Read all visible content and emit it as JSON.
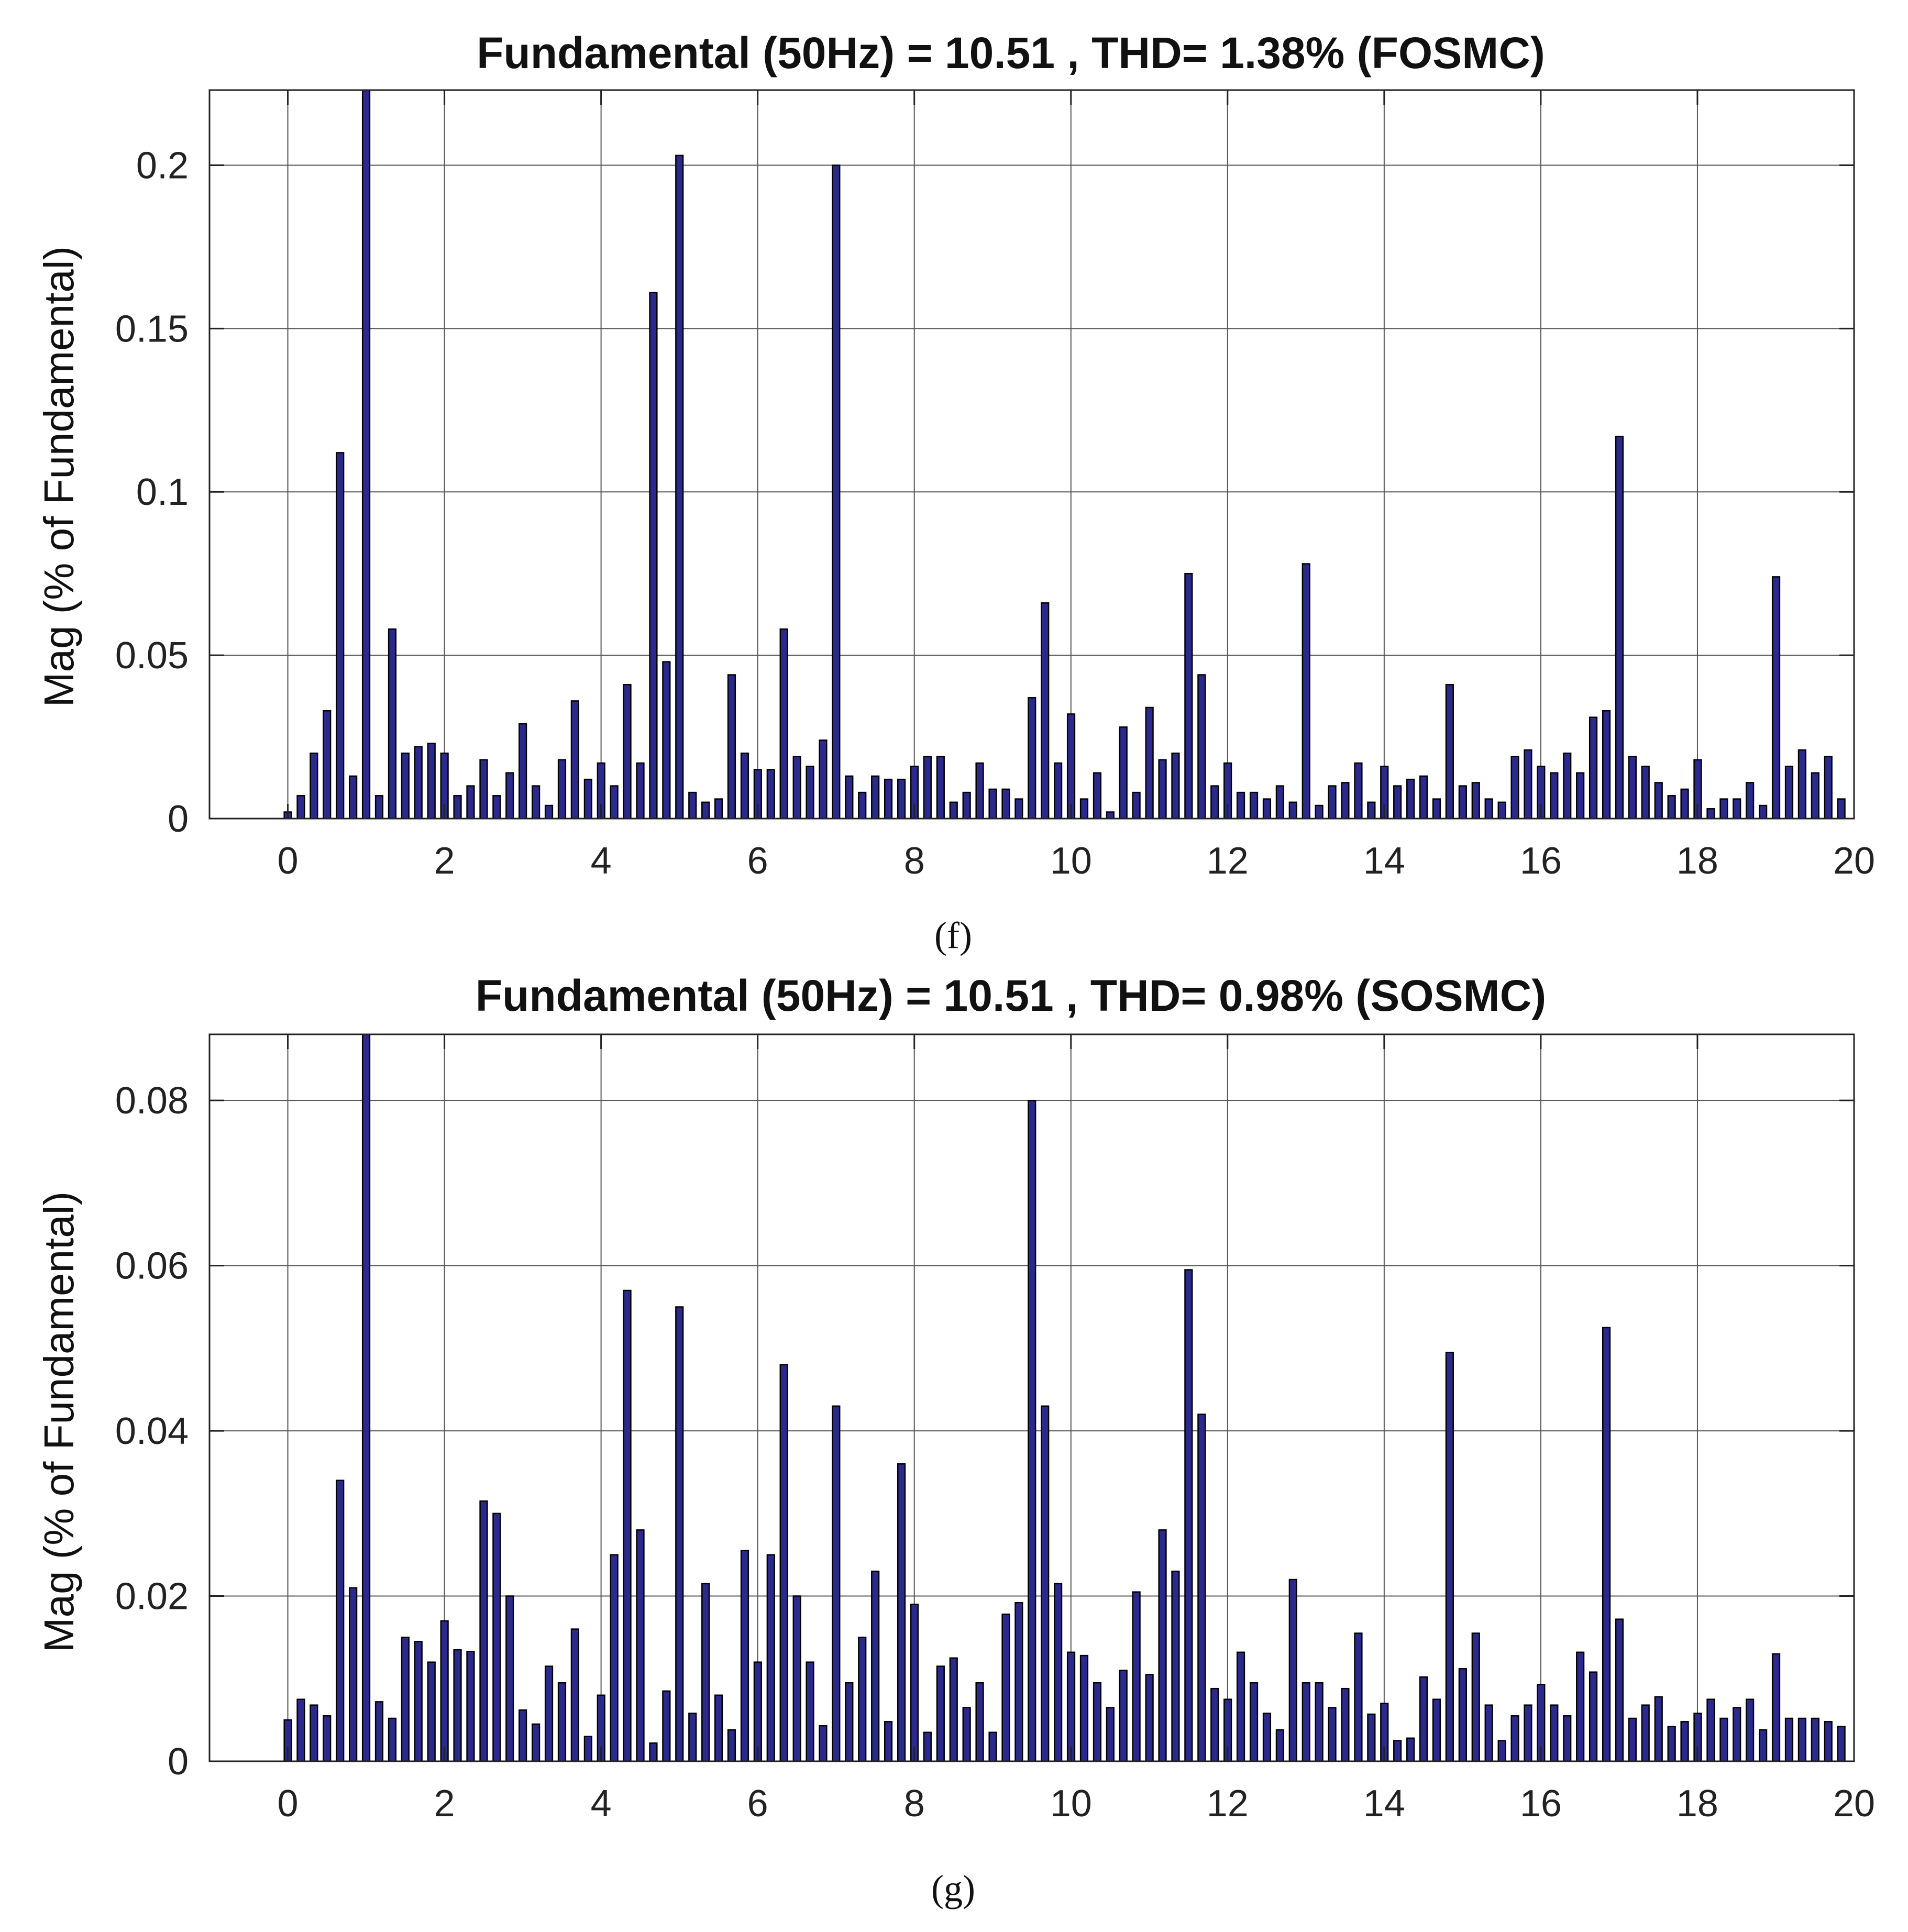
{
  "colors": {
    "bar": "#2b2a8c",
    "grid": "#555555",
    "axis": "#222222"
  },
  "chart_data": [
    {
      "type": "bar",
      "title": "Fundamental (50Hz) = 10.51 , THD= 1.38% (FOSMC)",
      "ylabel": "Mag (% of Fundamental)",
      "xlabel": "",
      "caption": "(f)",
      "xlim": [
        -1,
        20
      ],
      "ylim": [
        0,
        0.223
      ],
      "xticks": [
        0,
        2,
        4,
        6,
        8,
        10,
        12,
        14,
        16,
        18,
        20
      ],
      "yticks": [
        0,
        0.05,
        0.1,
        0.15,
        0.2
      ],
      "ytick_labels": [
        "0",
        "0.05",
        "0.1",
        "0.15",
        "0.2"
      ],
      "grid": true,
      "bar_step": 0.1667,
      "values": [
        0.002,
        0.007,
        0.02,
        0.033,
        0.112,
        0.013,
        0.223,
        0.007,
        0.058,
        0.02,
        0.022,
        0.023,
        0.02,
        0.007,
        0.01,
        0.018,
        0.007,
        0.014,
        0.029,
        0.01,
        0.004,
        0.018,
        0.036,
        0.012,
        0.017,
        0.01,
        0.041,
        0.017,
        0.161,
        0.048,
        0.203,
        0.008,
        0.005,
        0.006,
        0.044,
        0.02,
        0.015,
        0.015,
        0.058,
        0.019,
        0.016,
        0.024,
        0.2,
        0.013,
        0.008,
        0.013,
        0.012,
        0.012,
        0.016,
        0.019,
        0.019,
        0.005,
        0.008,
        0.017,
        0.009,
        0.009,
        0.006,
        0.037,
        0.066,
        0.017,
        0.032,
        0.006,
        0.014,
        0.002,
        0.028,
        0.008,
        0.034,
        0.018,
        0.02,
        0.075,
        0.044,
        0.01,
        0.017,
        0.008,
        0.008,
        0.006,
        0.01,
        0.005,
        0.078,
        0.004,
        0.01,
        0.011,
        0.017,
        0.005,
        0.016,
        0.01,
        0.012,
        0.013,
        0.006,
        0.041,
        0.01,
        0.011,
        0.006,
        0.005,
        0.019,
        0.021,
        0.016,
        0.014,
        0.02,
        0.014,
        0.031,
        0.033,
        0.117,
        0.019,
        0.016,
        0.011,
        0.007,
        0.009,
        0.018,
        0.003,
        0.006,
        0.006,
        0.011,
        0.004,
        0.074,
        0.016,
        0.021,
        0.014,
        0.019,
        0.006
      ]
    },
    {
      "type": "bar",
      "title": "Fundamental (50Hz) = 10.51 , THD= 0.98%  (SOSMC)",
      "ylabel": "Mag (% of Fundamental)",
      "xlabel": "",
      "caption": "(g)",
      "xlim": [
        -1,
        20
      ],
      "ylim": [
        0,
        0.088
      ],
      "xticks": [
        0,
        2,
        4,
        6,
        8,
        10,
        12,
        14,
        16,
        18,
        20
      ],
      "yticks": [
        0,
        0.02,
        0.04,
        0.06,
        0.08
      ],
      "ytick_labels": [
        "0",
        "0.02",
        "0.04",
        "0.06",
        "0.08"
      ],
      "grid": true,
      "bar_step": 0.1667,
      "values": [
        0.005,
        0.0075,
        0.0068,
        0.0055,
        0.034,
        0.021,
        0.088,
        0.0072,
        0.0052,
        0.015,
        0.0145,
        0.012,
        0.017,
        0.0135,
        0.0133,
        0.0315,
        0.03,
        0.02,
        0.0062,
        0.0045,
        0.0115,
        0.0095,
        0.016,
        0.003,
        0.008,
        0.025,
        0.057,
        0.028,
        0.0022,
        0.0085,
        0.055,
        0.0058,
        0.0215,
        0.008,
        0.0038,
        0.0255,
        0.012,
        0.025,
        0.048,
        0.02,
        0.012,
        0.0043,
        0.043,
        0.0095,
        0.015,
        0.023,
        0.0048,
        0.036,
        0.019,
        0.0035,
        0.0115,
        0.0125,
        0.0065,
        0.0095,
        0.0035,
        0.0178,
        0.0192,
        0.08,
        0.043,
        0.0215,
        0.0132,
        0.0128,
        0.0095,
        0.0065,
        0.011,
        0.0205,
        0.0105,
        0.028,
        0.023,
        0.0595,
        0.042,
        0.0088,
        0.0075,
        0.0132,
        0.0095,
        0.0058,
        0.0038,
        0.022,
        0.0095,
        0.0095,
        0.0065,
        0.0088,
        0.0155,
        0.0057,
        0.007,
        0.0025,
        0.0028,
        0.0102,
        0.0075,
        0.0495,
        0.0112,
        0.0155,
        0.0068,
        0.0025,
        0.0055,
        0.0068,
        0.0093,
        0.0068,
        0.0055,
        0.0132,
        0.0108,
        0.0525,
        0.0172,
        0.0052,
        0.0068,
        0.0078,
        0.0042,
        0.0048,
        0.0058,
        0.0075,
        0.0052,
        0.0065,
        0.0075,
        0.0038,
        0.013,
        0.0052,
        0.0052,
        0.0052,
        0.0048,
        0.0042
      ]
    }
  ]
}
